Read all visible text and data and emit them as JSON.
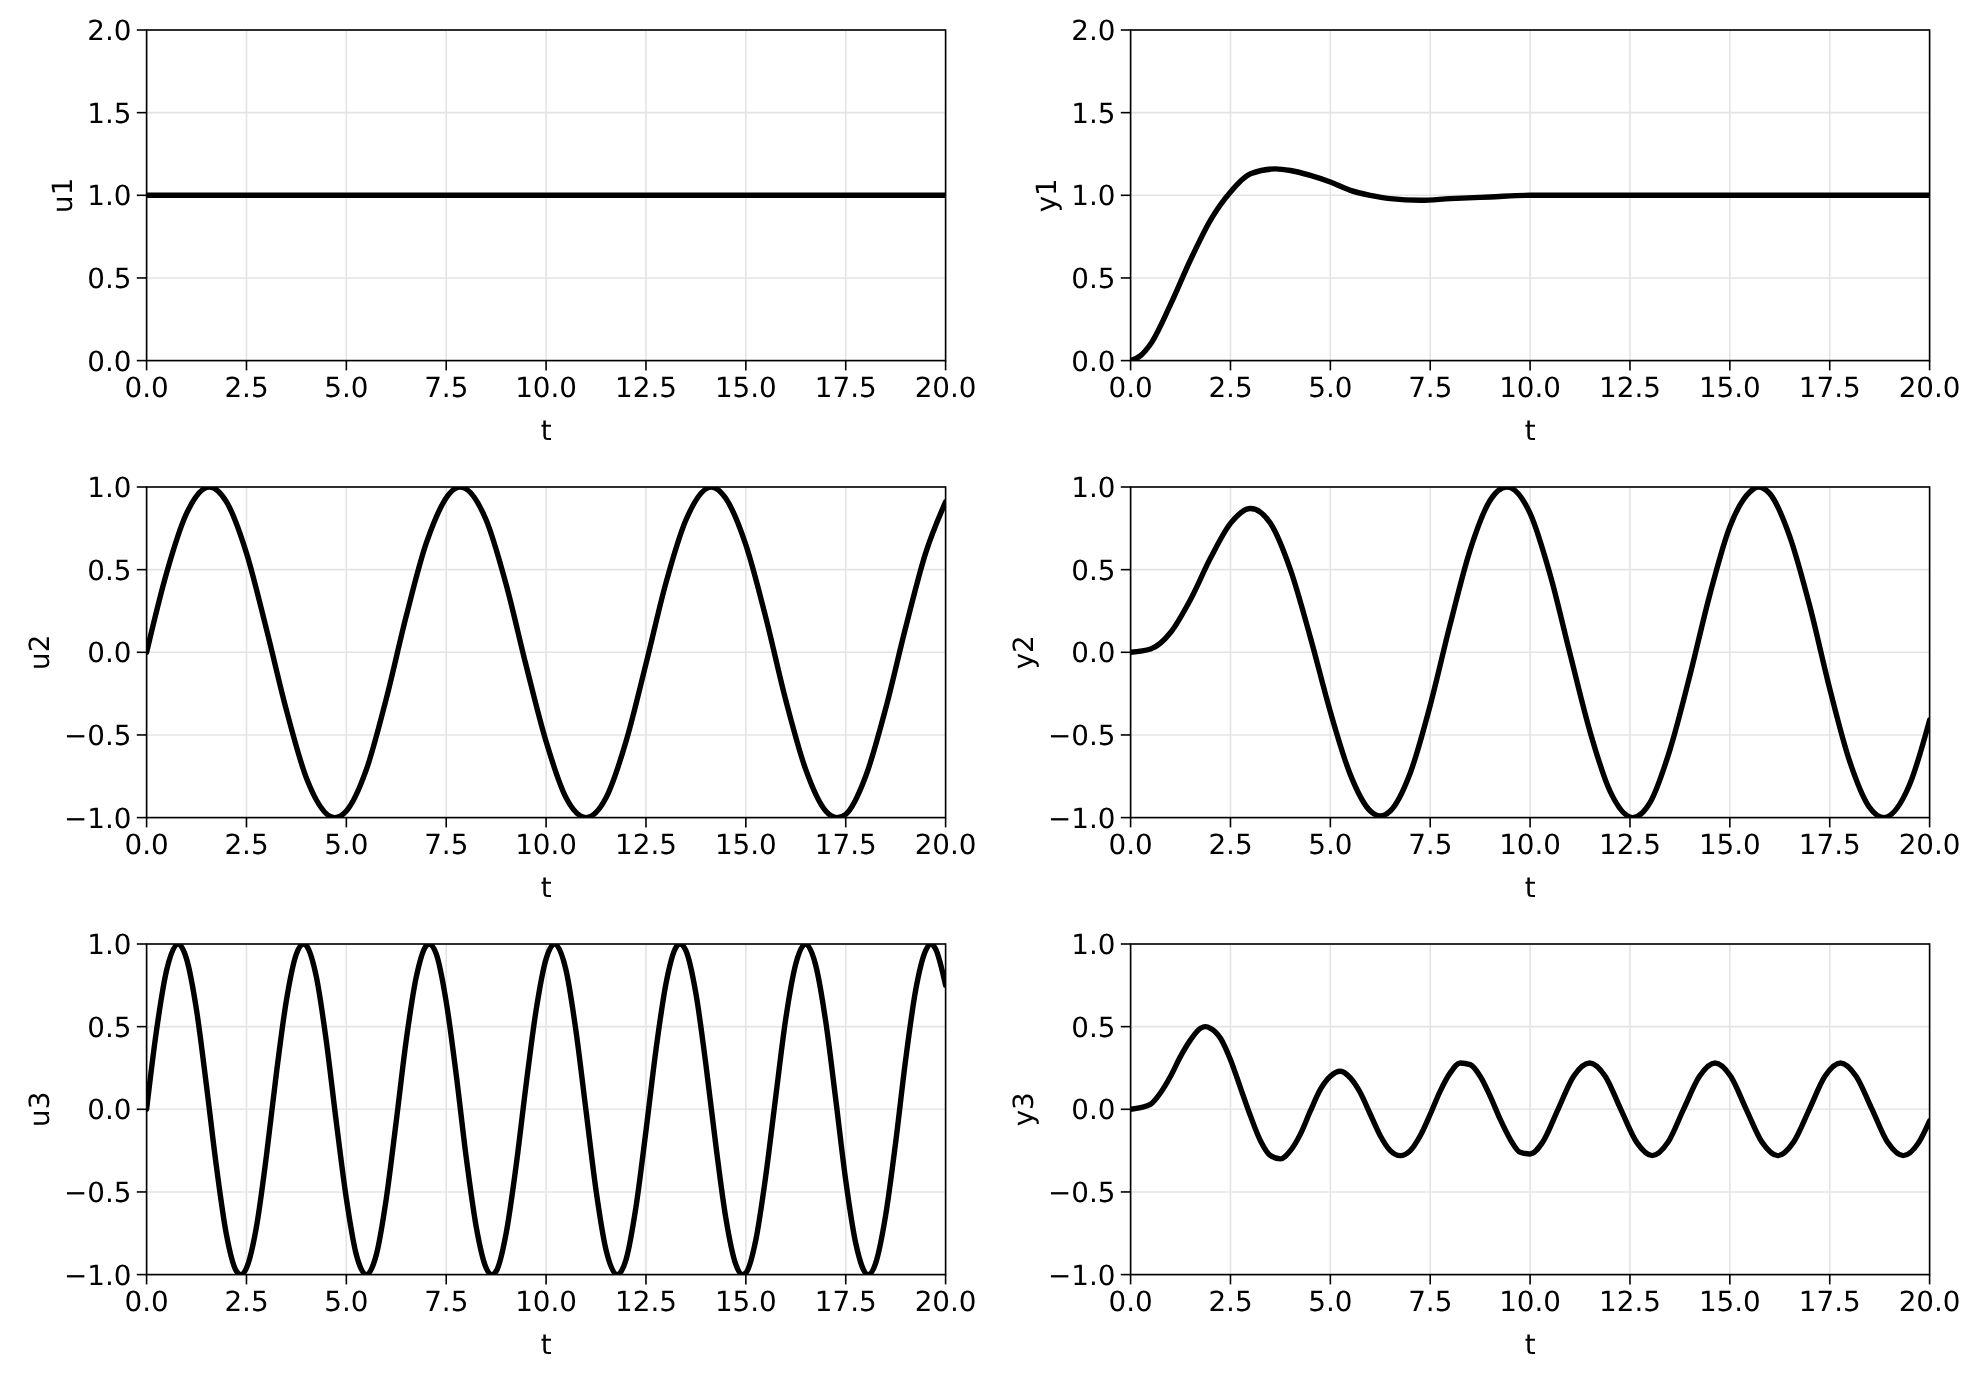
{
  "chart_data": [
    {
      "type": "line",
      "xlabel": "t",
      "ylabel": "u1",
      "x": [
        0,
        20
      ],
      "values": [
        1,
        1
      ],
      "color": "#000000",
      "xlim": [
        0,
        20
      ],
      "ylim": [
        0,
        2
      ],
      "xticks": [
        {
          "value": 0,
          "label": "0.0"
        },
        2.5,
        {
          "value": 5,
          "label": "5.0"
        },
        7.5,
        {
          "value": 10,
          "label": "10.0"
        },
        12.5,
        {
          "value": 15,
          "label": "15.0"
        },
        17.5,
        {
          "value": 20,
          "label": "20.0"
        }
      ],
      "yticks": [
        {
          "value": 0,
          "label": "0.0"
        },
        {
          "value": 0.5,
          "label": "0.5"
        },
        {
          "value": 1,
          "label": "1.0"
        },
        {
          "value": 1.5,
          "label": "1.5"
        },
        {
          "value": 2,
          "label": "2.0"
        }
      ],
      "grid": true
    },
    {
      "type": "line",
      "xlabel": "t",
      "ylabel": "y1",
      "x": [
        0,
        0.25,
        0.5,
        1,
        1.5,
        2,
        2.5,
        3,
        3.63,
        4,
        4.5,
        5,
        5.5,
        6,
        6.5,
        7.26,
        8,
        9,
        10,
        11,
        12,
        14,
        17,
        20
      ],
      "values": [
        0,
        0.03,
        0.1,
        0.34,
        0.61,
        0.85,
        1.02,
        1.13,
        1.16,
        1.15,
        1.12,
        1.08,
        1.03,
        1,
        0.98,
        0.97,
        0.98,
        0.99,
        1,
        1,
        1,
        1,
        1,
        1
      ],
      "color": "#000000",
      "xlim": [
        0,
        20
      ],
      "ylim": [
        0,
        2
      ],
      "xticks": [
        {
          "value": 0,
          "label": "0.0"
        },
        2.5,
        {
          "value": 5,
          "label": "5.0"
        },
        7.5,
        {
          "value": 10,
          "label": "10.0"
        },
        12.5,
        {
          "value": 15,
          "label": "15.0"
        },
        17.5,
        {
          "value": 20,
          "label": "20.0"
        }
      ],
      "yticks": [
        {
          "value": 0,
          "label": "0.0"
        },
        {
          "value": 0.5,
          "label": "0.5"
        },
        {
          "value": 1,
          "label": "1.0"
        },
        {
          "value": 1.5,
          "label": "1.5"
        },
        {
          "value": 2,
          "label": "2.0"
        }
      ],
      "grid": true
    },
    {
      "type": "line",
      "xlabel": "t",
      "ylabel": "u2",
      "x": [
        0,
        0.5,
        1,
        1.57,
        2,
        2.5,
        3,
        3.5,
        4,
        4.71,
        5,
        5.5,
        6,
        6.5,
        7,
        7.85,
        8.5,
        9,
        9.5,
        10,
        10.5,
        11,
        11.5,
        12,
        12.5,
        13,
        13.5,
        14.14,
        14.5,
        15,
        15.5,
        16,
        16.5,
        17,
        17.28,
        17.5,
        18,
        18.5,
        19,
        19.5,
        20
      ],
      "values": [
        0,
        0.48,
        0.84,
        1,
        0.91,
        0.6,
        0.14,
        -0.35,
        -0.76,
        -1,
        -0.96,
        -0.71,
        -0.28,
        0.22,
        0.66,
        1,
        0.8,
        0.41,
        -0.08,
        -0.54,
        -0.88,
        -1,
        -0.88,
        -0.54,
        -0.07,
        0.42,
        0.8,
        1,
        0.93,
        0.65,
        0.21,
        -0.29,
        -0.71,
        -0.96,
        -1,
        -0.98,
        -0.75,
        -0.34,
        0.15,
        0.6,
        0.91
      ],
      "color": "#000000",
      "xlim": [
        0,
        20
      ],
      "ylim": [
        -1,
        1
      ],
      "xticks": [
        {
          "value": 0,
          "label": "0.0"
        },
        2.5,
        {
          "value": 5,
          "label": "5.0"
        },
        7.5,
        {
          "value": 10,
          "label": "10.0"
        },
        12.5,
        {
          "value": 15,
          "label": "15.0"
        },
        17.5,
        {
          "value": 20,
          "label": "20.0"
        }
      ],
      "yticks": [
        {
          "value": -1,
          "label": "−1.0"
        },
        {
          "value": -0.5,
          "label": "−0.5"
        },
        {
          "value": 0,
          "label": "0.0"
        },
        {
          "value": 0.5,
          "label": "0.5"
        },
        {
          "value": 1,
          "label": "1.0"
        }
      ],
      "grid": true
    },
    {
      "type": "line",
      "xlabel": "t",
      "ylabel": "y2",
      "x": [
        0,
        0.5,
        1,
        1.5,
        2,
        2.5,
        3,
        3.5,
        4,
        4.5,
        5,
        5.5,
        6,
        6.25,
        6.5,
        7,
        7.5,
        8,
        8.5,
        9,
        9.42,
        10,
        10.5,
        11,
        11.5,
        12,
        12.57,
        13,
        13.5,
        14,
        14.5,
        15,
        15.5,
        15.71,
        16,
        16.5,
        17,
        17.5,
        18,
        18.5,
        18.85,
        19.5,
        20
      ],
      "values": [
        0,
        0.02,
        0.12,
        0.32,
        0.57,
        0.78,
        0.87,
        0.78,
        0.5,
        0.09,
        -0.36,
        -0.74,
        -0.96,
        -0.99,
        -0.96,
        -0.73,
        -0.32,
        0.17,
        0.62,
        0.92,
        1,
        0.84,
        0.47,
        -0.01,
        -0.48,
        -0.84,
        -1,
        -0.91,
        -0.59,
        -0.14,
        0.35,
        0.76,
        0.97,
        1,
        0.96,
        0.7,
        0.28,
        -0.22,
        -0.66,
        -0.94,
        -1,
        -0.8,
        -0.41
      ],
      "color": "#000000",
      "xlim": [
        0,
        20
      ],
      "ylim": [
        -1,
        1
      ],
      "xticks": [
        {
          "value": 0,
          "label": "0.0"
        },
        2.5,
        {
          "value": 5,
          "label": "5.0"
        },
        7.5,
        {
          "value": 10,
          "label": "10.0"
        },
        12.5,
        {
          "value": 15,
          "label": "15.0"
        },
        17.5,
        {
          "value": 20,
          "label": "20.0"
        }
      ],
      "yticks": [
        {
          "value": -1,
          "label": "−1.0"
        },
        {
          "value": -0.5,
          "label": "−0.5"
        },
        {
          "value": 0,
          "label": "0.0"
        },
        {
          "value": 0.5,
          "label": "0.5"
        },
        {
          "value": 1,
          "label": "1.0"
        }
      ],
      "grid": true
    },
    {
      "type": "line",
      "xlabel": "t",
      "ylabel": "u3",
      "x": [
        0,
        0.25,
        0.5,
        0.79,
        1,
        1.25,
        1.5,
        1.75,
        2,
        2.25,
        2.36,
        2.5,
        2.75,
        3,
        3.25,
        3.5,
        3.75,
        3.93,
        4,
        4.25,
        4.5,
        4.75,
        5,
        5.25,
        5.5,
        5.75,
        6,
        6.25,
        6.5,
        6.75,
        7,
        7.07,
        7.25,
        7.5,
        7.75,
        8,
        8.25,
        8.5,
        8.64,
        8.75,
        9,
        9.25,
        9.5,
        9.75,
        10,
        10.21,
        10.5,
        10.75,
        11,
        11.25,
        11.5,
        11.78,
        12,
        12.25,
        12.5,
        12.75,
        13,
        13.25,
        13.35,
        13.5,
        13.75,
        14,
        14.25,
        14.5,
        14.75,
        14.92,
        15,
        15.25,
        15.5,
        15.75,
        16,
        16.25,
        16.49,
        16.75,
        17,
        17.25,
        17.5,
        17.75,
        18.06,
        18.25,
        18.5,
        18.75,
        19,
        19.25,
        19.5,
        19.64,
        19.75,
        20
      ],
      "values": [
        0,
        0.48,
        0.84,
        1,
        0.91,
        0.6,
        0.14,
        -0.35,
        -0.76,
        -0.98,
        -1,
        -0.96,
        -0.71,
        -0.28,
        0.22,
        0.66,
        0.94,
        1,
        0.99,
        0.8,
        0.41,
        -0.08,
        -0.54,
        -0.88,
        -1,
        -0.88,
        -0.54,
        -0.07,
        0.42,
        0.8,
        0.99,
        1,
        0.94,
        0.65,
        0.21,
        -0.29,
        -0.71,
        -0.96,
        -1,
        -0.98,
        -0.75,
        -0.34,
        0.15,
        0.6,
        0.91,
        1,
        0.84,
        0.47,
        -0.01,
        -0.49,
        -0.85,
        -1,
        -0.91,
        -0.59,
        -0.13,
        0.36,
        0.76,
        0.98,
        1,
        0.96,
        0.7,
        0.27,
        -0.22,
        -0.66,
        -0.94,
        -1,
        -0.99,
        -0.79,
        -0.4,
        0.08,
        0.55,
        0.88,
        1,
        0.87,
        0.53,
        0.06,
        -0.43,
        -0.81,
        -1,
        -0.93,
        -0.64,
        -0.2,
        0.3,
        0.72,
        0.96,
        1,
        0.97,
        0.75
      ],
      "color": "#000000",
      "xlim": [
        0,
        20
      ],
      "ylim": [
        -1,
        1
      ],
      "xticks": [
        {
          "value": 0,
          "label": "0.0"
        },
        2.5,
        {
          "value": 5,
          "label": "5.0"
        },
        7.5,
        {
          "value": 10,
          "label": "10.0"
        },
        12.5,
        {
          "value": 15,
          "label": "15.0"
        },
        17.5,
        {
          "value": 20,
          "label": "20.0"
        }
      ],
      "yticks": [
        {
          "value": -1,
          "label": "−1.0"
        },
        {
          "value": -0.5,
          "label": "−0.5"
        },
        {
          "value": 0,
          "label": "0.0"
        },
        {
          "value": 0.5,
          "label": "0.5"
        },
        {
          "value": 1,
          "label": "1.0"
        }
      ],
      "grid": true
    },
    {
      "type": "line",
      "xlabel": "t",
      "ylabel": "y3",
      "x": [
        0,
        0.25,
        0.5,
        0.75,
        1,
        1.25,
        1.5,
        1.75,
        1.875,
        2,
        2.25,
        2.5,
        2.75,
        3,
        3.25,
        3.5,
        3.75,
        4,
        4.25,
        4.5,
        4.75,
        5,
        5.25,
        5.5,
        5.75,
        6,
        6.25,
        6.5,
        6.75,
        7,
        7.25,
        7.5,
        7.75,
        8,
        8.25,
        8.5,
        8.75,
        9,
        9.25,
        9.5,
        9.75,
        10,
        10.31,
        10.7,
        11.09,
        11.49,
        11.88,
        12.27,
        12.67,
        13.06,
        13.45,
        13.84,
        14.24,
        14.63,
        15.02,
        15.41,
        15.81,
        16.2,
        16.59,
        16.99,
        17.38,
        17.77,
        18.16,
        18.56,
        18.95,
        19.34,
        19.73,
        20
      ],
      "values": [
        0,
        0.01,
        0.03,
        0.1,
        0.2,
        0.32,
        0.42,
        0.49,
        0.5,
        0.49,
        0.43,
        0.3,
        0.13,
        -0.04,
        -0.19,
        -0.28,
        -0.3,
        -0.25,
        -0.15,
        -0.01,
        0.12,
        0.2,
        0.23,
        0.19,
        0.1,
        -0.03,
        -0.16,
        -0.25,
        -0.28,
        -0.25,
        -0.16,
        -0.03,
        0.11,
        0.22,
        0.28,
        0.27,
        0.2,
        0.08,
        -0.06,
        -0.18,
        -0.26,
        -0.27,
        -0.2,
        0,
        0.2,
        0.28,
        0.2,
        0,
        -0.2,
        -0.28,
        -0.2,
        0,
        0.2,
        0.28,
        0.2,
        0,
        -0.2,
        -0.28,
        -0.2,
        0,
        0.2,
        0.28,
        0.2,
        0,
        -0.2,
        -0.28,
        -0.2,
        -0.07
      ],
      "color": "#000000",
      "xlim": [
        0,
        20
      ],
      "ylim": [
        -1,
        1
      ],
      "xticks": [
        {
          "value": 0,
          "label": "0.0"
        },
        2.5,
        {
          "value": 5,
          "label": "5.0"
        },
        7.5,
        {
          "value": 10,
          "label": "10.0"
        },
        12.5,
        {
          "value": 15,
          "label": "15.0"
        },
        17.5,
        {
          "value": 20,
          "label": "20.0"
        }
      ],
      "yticks": [
        {
          "value": -1,
          "label": "−1.0"
        },
        {
          "value": -0.5,
          "label": "−0.5"
        },
        {
          "value": 0,
          "label": "0.0"
        },
        {
          "value": 0.5,
          "label": "0.5"
        },
        {
          "value": 1,
          "label": "1.0"
        }
      ],
      "grid": true
    }
  ]
}
